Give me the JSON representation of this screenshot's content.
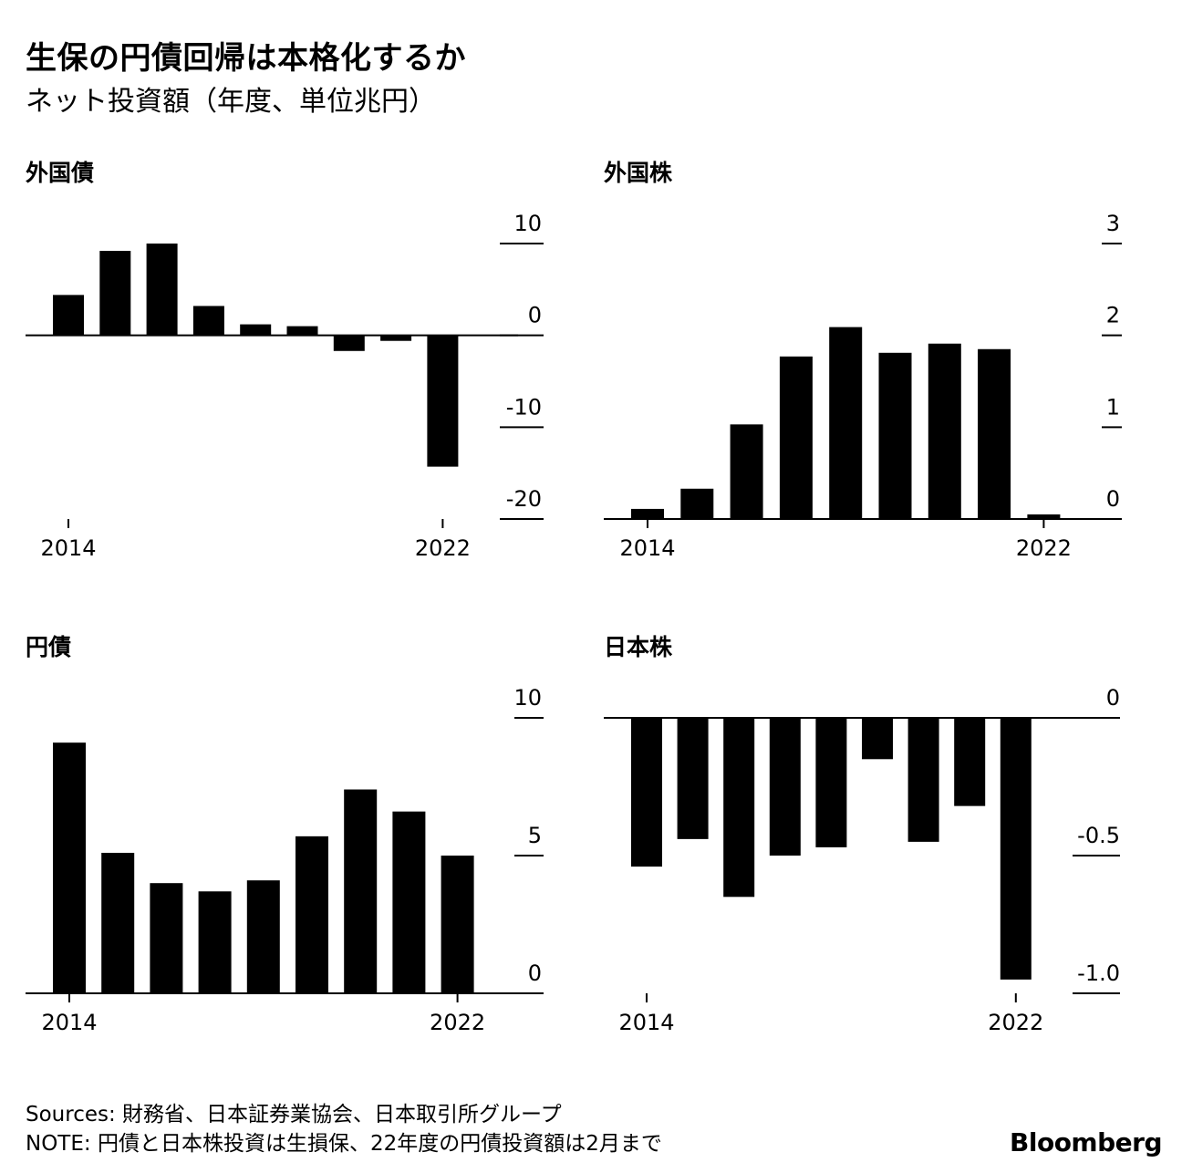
{
  "title": "生保の円債回帰は本格化するか",
  "subtitle": "ネット投資額（年度、単位兆円）",
  "footer": {
    "sources": "Sources: 財務省、日本証券業協会、日本取引所グループ",
    "note": "NOTE: 円債と日本株投資は生損保、22年度の円債投資額は2月まで"
  },
  "brand": "Bloomberg",
  "colors": {
    "bar": "#000000",
    "background": "#ffffff"
  },
  "chart_data": [
    {
      "type": "bar",
      "title": "外国債",
      "categories": [
        "2014",
        "2015",
        "2016",
        "2017",
        "2018",
        "2019",
        "2020",
        "2021",
        "2022"
      ],
      "values": [
        4.4,
        9.2,
        10.0,
        3.2,
        1.2,
        1.0,
        -1.7,
        -0.6,
        -14.3
      ],
      "ylim": [
        -20,
        10
      ],
      "yticks": [
        "10",
        "0",
        "-10",
        "-20"
      ],
      "xticks": [
        "2014",
        "2022"
      ]
    },
    {
      "type": "bar",
      "title": "外国株",
      "categories": [
        "2014",
        "2015",
        "2016",
        "2017",
        "2018",
        "2019",
        "2020",
        "2021",
        "2022"
      ],
      "values": [
        0.11,
        0.33,
        1.03,
        1.77,
        2.09,
        1.81,
        1.91,
        1.85,
        0.05
      ],
      "ylim": [
        0,
        3
      ],
      "yticks": [
        "3",
        "2",
        "1",
        "0"
      ],
      "xticks": [
        "2014",
        "2022"
      ]
    },
    {
      "type": "bar",
      "title": "円債",
      "categories": [
        "2014",
        "2015",
        "2016",
        "2017",
        "2018",
        "2019",
        "2020",
        "2021",
        "2022"
      ],
      "values": [
        9.1,
        5.1,
        4.0,
        3.7,
        4.1,
        5.7,
        7.4,
        6.6,
        5.0
      ],
      "ylim": [
        0,
        10
      ],
      "yticks": [
        "10",
        "5",
        "0"
      ],
      "xticks": [
        "2014",
        "2022"
      ]
    },
    {
      "type": "bar",
      "title": "日本株",
      "categories": [
        "2014",
        "2015",
        "2016",
        "2017",
        "2018",
        "2019",
        "2020",
        "2021",
        "2022"
      ],
      "values": [
        -0.54,
        -0.44,
        -0.65,
        -0.5,
        -0.47,
        -0.15,
        -0.45,
        -0.32,
        -0.95
      ],
      "ylim": [
        -1.0,
        0
      ],
      "yticks": [
        "0",
        "-0.5",
        "-1.0"
      ],
      "xticks": [
        "2014",
        "2022"
      ]
    }
  ]
}
